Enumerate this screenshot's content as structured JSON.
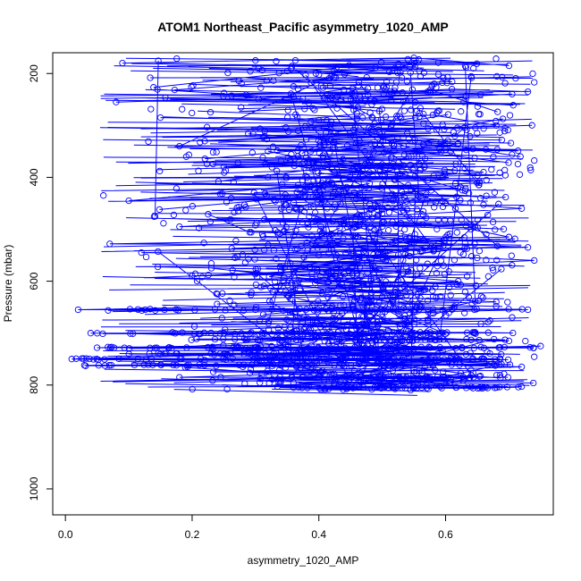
{
  "chart_data": {
    "type": "line",
    "title": "ATOM1 Northeast_Pacific asymmetry_1020_AMP",
    "xlabel": "asymmetry_1020_AMP",
    "ylabel": "Pressure (mbar)",
    "xlim": [
      -0.02,
      0.77
    ],
    "ylim": [
      1050,
      160
    ],
    "y_inverted": true,
    "x_ticks": [
      0.0,
      0.2,
      0.4,
      0.6
    ],
    "x_tick_labels": [
      "0.0",
      "0.2",
      "0.4",
      "0.6"
    ],
    "y_ticks": [
      200,
      400,
      600,
      800,
      1000
    ],
    "y_tick_labels": [
      "200",
      "400",
      "600",
      "800",
      "1000"
    ],
    "grid": false,
    "series_color": "#0000ff",
    "marker": "open-circle",
    "series": [
      {
        "name": "",
        "points": [
          [
            0.06,
            435
          ],
          [
            0.18,
            340
          ],
          [
            0.42,
            205
          ],
          [
            0.52,
            190
          ],
          [
            0.08,
            255
          ],
          [
            0.36,
            245
          ],
          [
            0.61,
            230
          ],
          [
            0.73,
            235
          ],
          [
            0.09,
            180
          ],
          [
            0.3,
            175
          ],
          [
            0.55,
            170
          ],
          [
            0.7,
            185
          ],
          [
            0.15,
            285
          ],
          [
            0.4,
            290
          ],
          [
            0.58,
            280
          ],
          [
            0.68,
            300
          ],
          [
            0.22,
            330
          ],
          [
            0.45,
            320
          ],
          [
            0.62,
            335
          ],
          [
            0.48,
            360
          ],
          [
            0.25,
            380
          ],
          [
            0.5,
            375
          ],
          [
            0.66,
            390
          ],
          [
            0.42,
            410
          ],
          [
            0.1,
            445
          ],
          [
            0.35,
            440
          ],
          [
            0.6,
            450
          ],
          [
            0.72,
            460
          ],
          [
            0.18,
            495
          ],
          [
            0.44,
            490
          ],
          [
            0.64,
            500
          ],
          [
            0.7,
            515
          ],
          [
            0.07,
            528
          ],
          [
            0.32,
            530
          ],
          [
            0.55,
            525
          ],
          [
            0.73,
            535
          ],
          [
            0.12,
            545
          ],
          [
            0.4,
            550
          ],
          [
            0.65,
            555
          ],
          [
            0.74,
            560
          ],
          [
            0.2,
            590
          ],
          [
            0.46,
            585
          ],
          [
            0.62,
            600
          ],
          [
            0.36,
            620
          ],
          [
            0.24,
            625
          ],
          [
            0.5,
            630
          ],
          [
            0.68,
            640
          ],
          [
            0.02,
            655
          ],
          [
            0.3,
            655
          ],
          [
            0.55,
            660
          ],
          [
            0.73,
            655
          ],
          [
            0.04,
            700
          ],
          [
            0.25,
            700
          ],
          [
            0.48,
            705
          ],
          [
            0.7,
            715
          ],
          [
            0.05,
            728
          ],
          [
            0.3,
            728
          ],
          [
            0.55,
            730
          ],
          [
            0.75,
            725
          ],
          [
            0.01,
            750
          ],
          [
            0.22,
            752
          ],
          [
            0.46,
            748
          ],
          [
            0.68,
            755
          ],
          [
            0.03,
            762
          ],
          [
            0.28,
            765
          ],
          [
            0.52,
            760
          ],
          [
            0.72,
            765
          ],
          [
            0.18,
            785
          ],
          [
            0.42,
            785
          ],
          [
            0.6,
            790
          ],
          [
            0.36,
            805
          ],
          [
            0.5,
            805
          ],
          [
            0.66,
            805
          ],
          [
            0.72,
            803
          ]
        ]
      }
    ],
    "y_clusters": [
      {
        "p": 655,
        "xmin": 0.03,
        "xmax": 0.73,
        "n": 30
      },
      {
        "p": 700,
        "xmin": 0.04,
        "xmax": 0.72,
        "n": 45
      },
      {
        "p": 712,
        "xmin": 0.15,
        "xmax": 0.7,
        "n": 30
      },
      {
        "p": 728,
        "xmin": 0.05,
        "xmax": 0.75,
        "n": 50
      },
      {
        "p": 740,
        "xmin": 0.1,
        "xmax": 0.72,
        "n": 40
      },
      {
        "p": 750,
        "xmin": 0.01,
        "xmax": 0.73,
        "n": 55
      },
      {
        "p": 762,
        "xmin": 0.03,
        "xmax": 0.72,
        "n": 45
      },
      {
        "p": 785,
        "xmin": 0.35,
        "xmax": 0.7,
        "n": 30
      },
      {
        "p": 805,
        "xmin": 0.36,
        "xmax": 0.72,
        "n": 40
      }
    ]
  }
}
